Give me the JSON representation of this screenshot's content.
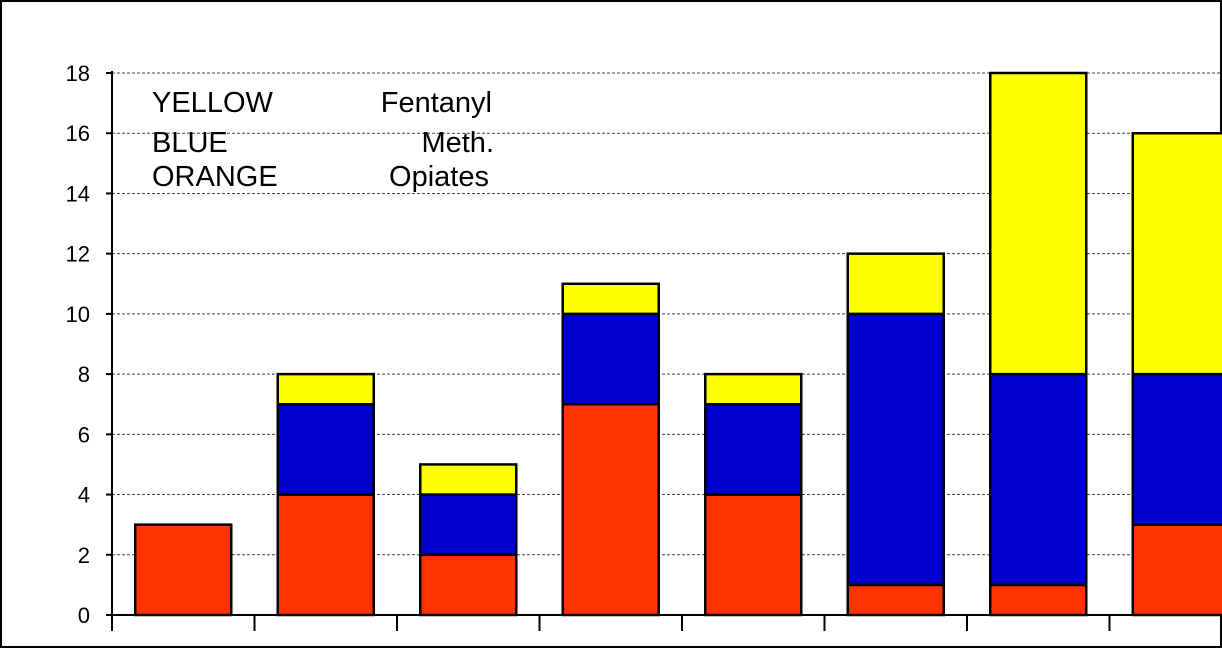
{
  "chart_data": {
    "type": "bar",
    "stacked": true,
    "title": "",
    "xlabel": "",
    "ylabel": "",
    "ylim": [
      0,
      18
    ],
    "y_ticks": [
      "0",
      "2",
      "4",
      "6",
      "8",
      "10",
      "12",
      "14",
      "16",
      "18"
    ],
    "grid": true,
    "categories": [
      "",
      "",
      "",
      "",
      "",
      "",
      "",
      ""
    ],
    "series": [
      {
        "key": "opiates",
        "color": "#ff3300",
        "values": [
          3,
          4,
          2,
          7,
          4,
          1,
          1,
          3
        ]
      },
      {
        "key": "meth",
        "color": "#0000cc",
        "values": [
          0,
          3,
          2,
          3,
          3,
          9,
          7,
          5
        ]
      },
      {
        "key": "fentanyl",
        "color": "#ffff00",
        "values": [
          0,
          1,
          1,
          1,
          1,
          2,
          10,
          8
        ]
      }
    ],
    "legend_text": {
      "rows": [
        {
          "color_word": "YELLOW",
          "drug": "Fentanyl"
        },
        {
          "color_word": "BLUE",
          "drug": "Meth."
        },
        {
          "color_word": "ORANGE",
          "drug": "Opiates"
        }
      ],
      "placement": "top-left"
    }
  }
}
